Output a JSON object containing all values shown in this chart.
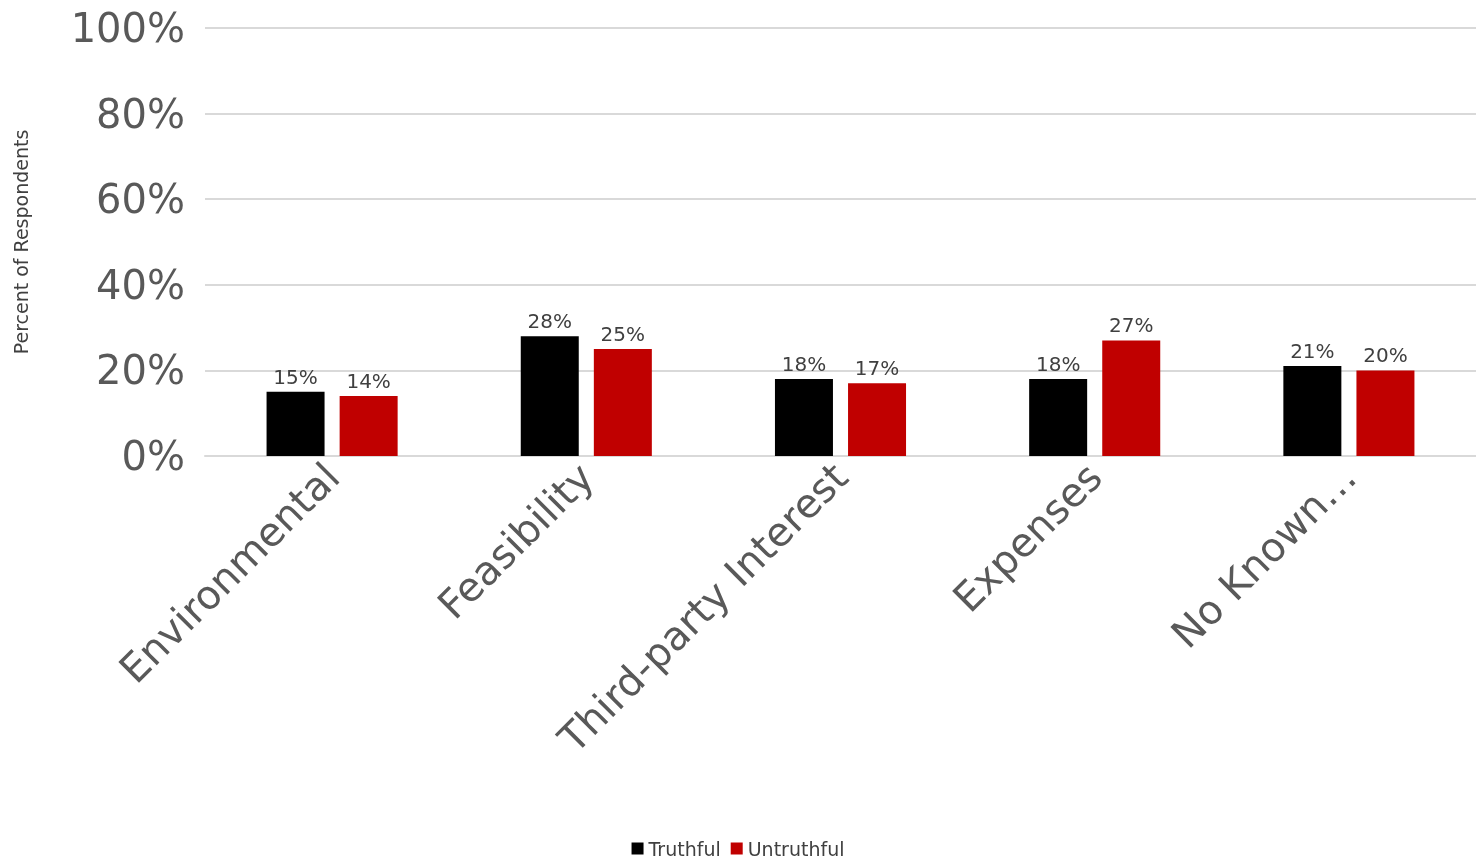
{
  "chart_data": {
    "type": "bar",
    "ylabel": "Percent of Respondents",
    "categories": [
      "Environmental",
      "Feasibility",
      "Third-party Interest",
      "Expenses",
      "No Known…"
    ],
    "series": [
      {
        "name": "Truthful",
        "color": "#000000",
        "values": [
          15,
          28,
          18,
          18,
          21
        ],
        "value_labels": [
          "15%",
          "28%",
          "18%",
          "18%",
          "21%"
        ]
      },
      {
        "name": "Untruthful",
        "color": "#c00000",
        "values": [
          14,
          25,
          17,
          27,
          20
        ],
        "value_labels": [
          "14%",
          "25%",
          "17%",
          "27%",
          "20%"
        ]
      }
    ],
    "ylim": [
      0,
      100
    ],
    "yticks": [
      {
        "value": 0,
        "label": "0%"
      },
      {
        "value": 20,
        "label": "20%"
      },
      {
        "value": 40,
        "label": "40%"
      },
      {
        "value": 60,
        "label": "60%"
      },
      {
        "value": 80,
        "label": "80%"
      },
      {
        "value": 100,
        "label": "100%"
      }
    ],
    "grid": "y",
    "legend": "bottom"
  }
}
